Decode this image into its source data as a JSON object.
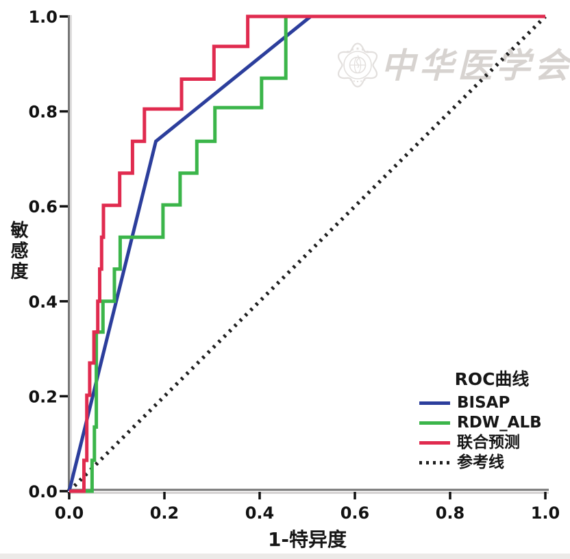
{
  "watermark": {
    "text": "中华医学会",
    "color": "#d7d3d0"
  },
  "chart_data": {
    "type": "line",
    "subtype": "roc-step-curves",
    "title": "",
    "xlabel": "1-特异度",
    "ylabel": "敏感度",
    "xlim": [
      0.0,
      1.0
    ],
    "ylim": [
      0.0,
      1.0
    ],
    "xticks": [
      0.0,
      0.2,
      0.4,
      0.6,
      0.8,
      1.0
    ],
    "yticks": [
      0.0,
      0.2,
      0.4,
      0.6,
      0.8,
      1.0
    ],
    "grid": false,
    "axis_color": "#767676",
    "tick_label_color": "#111111",
    "legend": {
      "title": "ROC曲线",
      "position": "lower-right"
    },
    "series": [
      {
        "name": "BISAP",
        "color": "#2c3e9c",
        "style": "solid",
        "points": [
          [
            0,
            0
          ],
          [
            0.182,
            0.737
          ],
          [
            0.507,
            1.0
          ],
          [
            1.0,
            1.0
          ]
        ]
      },
      {
        "name": "RDW_ALB",
        "color": "#3bb54a",
        "style": "solid",
        "points": [
          [
            0,
            0
          ],
          [
            0.048,
            0
          ],
          [
            0.048,
            0.065
          ],
          [
            0.053,
            0.065
          ],
          [
            0.053,
            0.135
          ],
          [
            0.057,
            0.135
          ],
          [
            0.057,
            0.335
          ],
          [
            0.071,
            0.335
          ],
          [
            0.071,
            0.4
          ],
          [
            0.095,
            0.4
          ],
          [
            0.095,
            0.468
          ],
          [
            0.107,
            0.468
          ],
          [
            0.107,
            0.535
          ],
          [
            0.197,
            0.535
          ],
          [
            0.197,
            0.603
          ],
          [
            0.233,
            0.603
          ],
          [
            0.233,
            0.67
          ],
          [
            0.268,
            0.67
          ],
          [
            0.268,
            0.737
          ],
          [
            0.306,
            0.737
          ],
          [
            0.306,
            0.808
          ],
          [
            0.404,
            0.808
          ],
          [
            0.404,
            0.87
          ],
          [
            0.455,
            0.87
          ],
          [
            0.455,
            1.0
          ],
          [
            1.0,
            1.0
          ]
        ]
      },
      {
        "name": "联合预测",
        "color": "#e02b4f",
        "style": "solid",
        "points": [
          [
            0,
            0
          ],
          [
            0.031,
            0
          ],
          [
            0.031,
            0.065
          ],
          [
            0.037,
            0.065
          ],
          [
            0.037,
            0.202
          ],
          [
            0.043,
            0.202
          ],
          [
            0.043,
            0.27
          ],
          [
            0.052,
            0.27
          ],
          [
            0.052,
            0.335
          ],
          [
            0.06,
            0.335
          ],
          [
            0.06,
            0.4
          ],
          [
            0.064,
            0.4
          ],
          [
            0.064,
            0.468
          ],
          [
            0.068,
            0.468
          ],
          [
            0.068,
            0.535
          ],
          [
            0.072,
            0.535
          ],
          [
            0.072,
            0.602
          ],
          [
            0.106,
            0.602
          ],
          [
            0.106,
            0.67
          ],
          [
            0.133,
            0.67
          ],
          [
            0.133,
            0.737
          ],
          [
            0.158,
            0.737
          ],
          [
            0.158,
            0.805
          ],
          [
            0.236,
            0.805
          ],
          [
            0.236,
            0.868
          ],
          [
            0.304,
            0.868
          ],
          [
            0.304,
            0.937
          ],
          [
            0.375,
            0.937
          ],
          [
            0.375,
            1.0
          ],
          [
            1.0,
            1.0
          ]
        ]
      },
      {
        "name": "参考线",
        "color": "#1f1f1f",
        "style": "dotted",
        "points": [
          [
            0,
            0
          ],
          [
            1.0,
            1.0
          ]
        ]
      }
    ]
  }
}
